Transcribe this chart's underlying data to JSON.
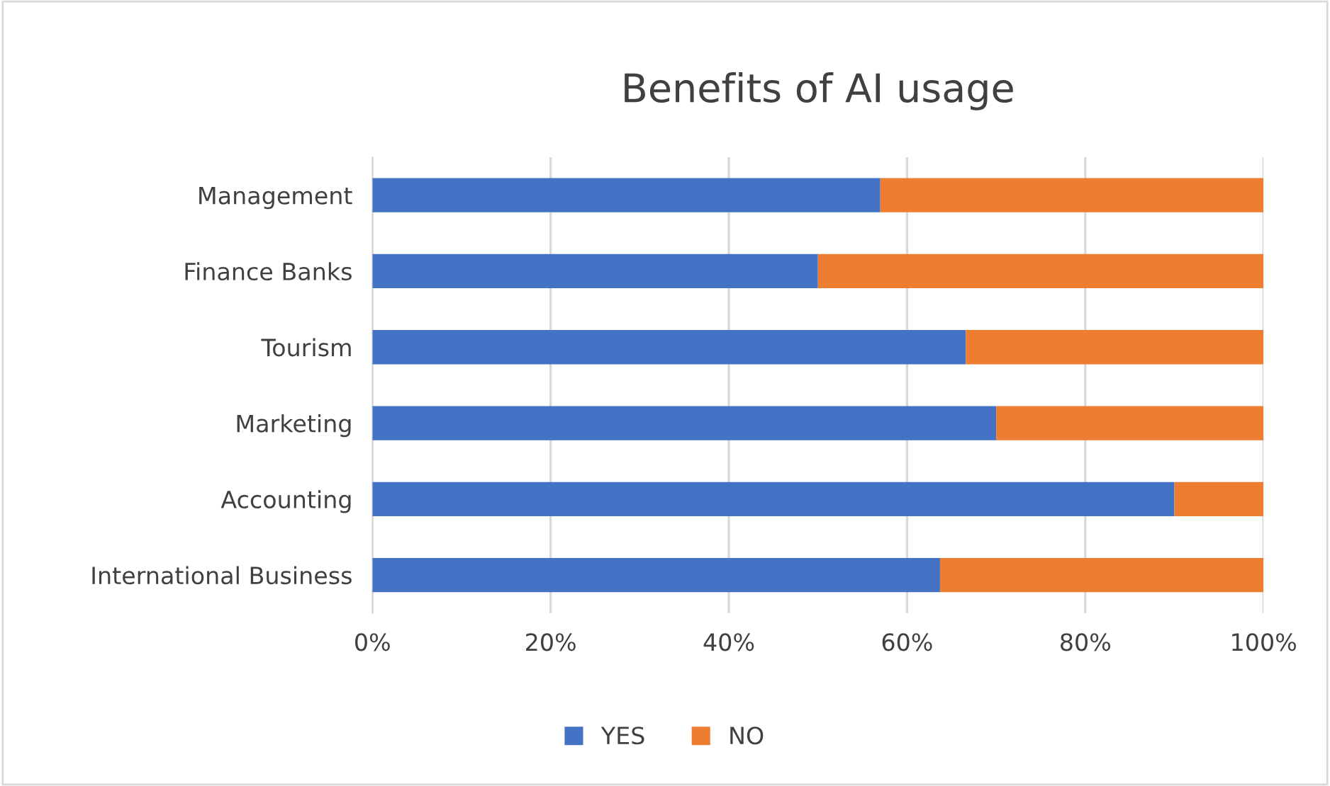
{
  "chart_data": {
    "type": "bar",
    "title": "Benefits of AI usage",
    "orientation": "horizontal",
    "stacked": true,
    "categories": [
      "Management",
      "Finance Banks",
      "Tourism",
      "Marketing",
      "Accounting",
      "International Business"
    ],
    "series": [
      {
        "name": "YES",
        "color": "#4472c4",
        "values": [
          57,
          50,
          66.6,
          70,
          90,
          63.7
        ]
      },
      {
        "name": "NO",
        "color": "#ed7d31",
        "values": [
          43,
          50,
          33.4,
          30,
          10,
          36.3
        ]
      }
    ],
    "xlim": [
      0,
      100
    ],
    "xticks": [
      {
        "value": 0,
        "label": "0%"
      },
      {
        "value": 20,
        "label": "20%"
      },
      {
        "value": 40,
        "label": "40%"
      },
      {
        "value": 60,
        "label": "60%"
      },
      {
        "value": 80,
        "label": "80%"
      },
      {
        "value": 100,
        "label": "100%"
      }
    ],
    "grid": "x",
    "legend": "bottom"
  }
}
